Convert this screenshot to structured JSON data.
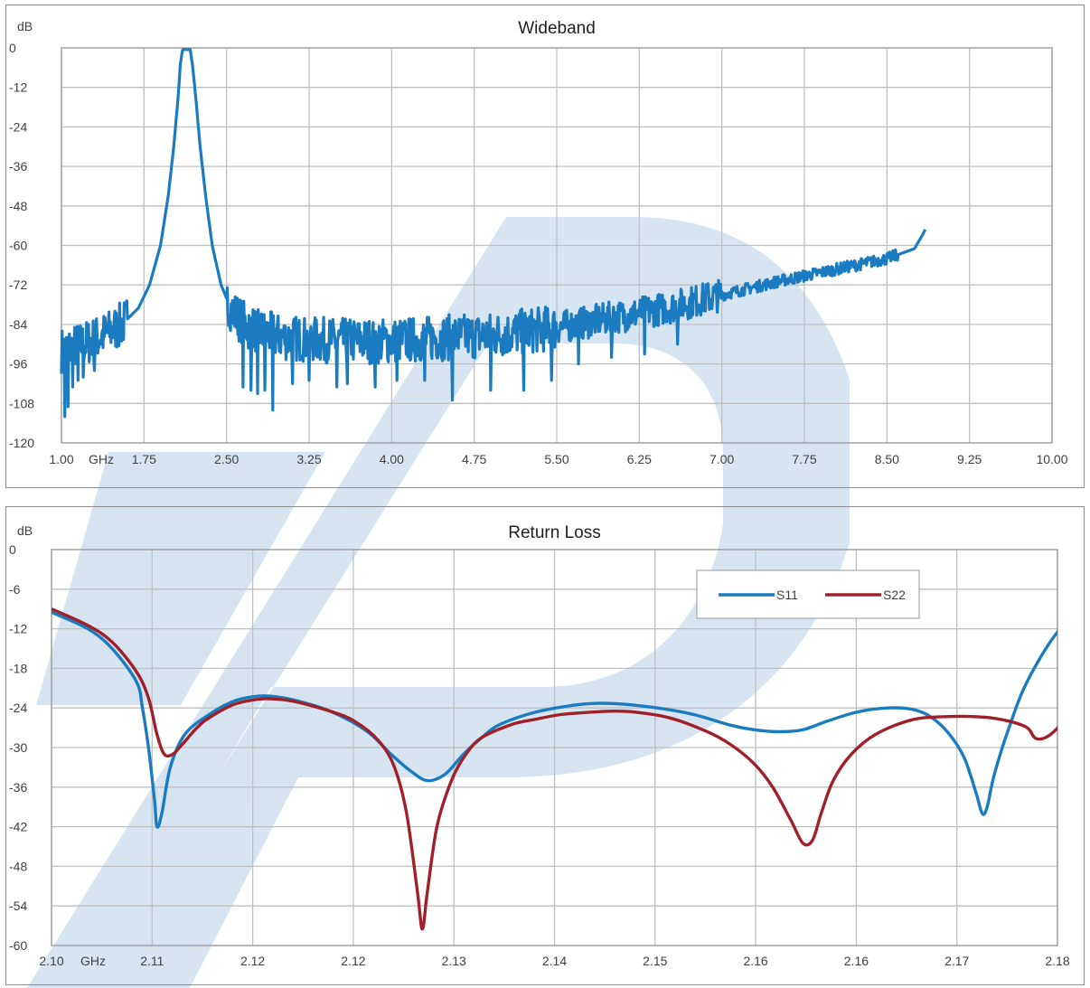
{
  "watermark": {
    "color": "#cfe0ef",
    "shape": "stylized-logo"
  },
  "chart_data": [
    {
      "type": "line",
      "title": "Wideband",
      "ylabel": "dB",
      "xunit": "GHz",
      "xlim": [
        1.0,
        10.0
      ],
      "ylim": [
        -120,
        0
      ],
      "grid": true,
      "x_ticks": [
        "1.00",
        "1.75",
        "2.50",
        "3.25",
        "4.00",
        "4.75",
        "5.50",
        "6.25",
        "7.00",
        "7.75",
        "8.50",
        "9.25",
        "10.00"
      ],
      "y_ticks": [
        "0",
        "-12",
        "-24",
        "-36",
        "-48",
        "-60",
        "-72",
        "-84",
        "-96",
        "-108",
        "-120"
      ],
      "series": [
        {
          "color": "#1a7bc0",
          "points": [
            [
              1.0,
              -92
            ],
            [
              1.2,
              -90
            ],
            [
              1.4,
              -87
            ],
            [
              1.55,
              -84
            ],
            [
              1.7,
              -79
            ],
            [
              1.8,
              -72
            ],
            [
              1.9,
              -60
            ],
            [
              1.97,
              -45
            ],
            [
              2.02,
              -30
            ],
            [
              2.06,
              -15
            ],
            [
              2.08,
              -5
            ],
            [
              2.1,
              -0.5
            ],
            [
              2.17,
              -0.5
            ],
            [
              2.19,
              -5
            ],
            [
              2.22,
              -15
            ],
            [
              2.26,
              -30
            ],
            [
              2.31,
              -45
            ],
            [
              2.37,
              -60
            ],
            [
              2.45,
              -72
            ],
            [
              2.55,
              -80
            ],
            [
              2.7,
              -85
            ],
            [
              3.0,
              -88
            ],
            [
              3.5,
              -89
            ],
            [
              4.0,
              -89
            ],
            [
              4.5,
              -88
            ],
            [
              5.0,
              -87
            ],
            [
              5.5,
              -85
            ],
            [
              6.0,
              -82
            ],
            [
              6.5,
              -79
            ],
            [
              7.0,
              -75
            ],
            [
              7.5,
              -71
            ],
            [
              8.0,
              -67.5
            ],
            [
              8.5,
              -64
            ],
            [
              8.75,
              -61
            ],
            [
              8.82,
              -57
            ],
            [
              8.85,
              -55
            ]
          ],
          "noise": [
            {
              "x": [
                1.0,
                1.6
              ],
              "spread": 7,
              "dips": [
                [
                  1.03,
                  -112
                ],
                [
                  1.06,
                  -109
                ],
                [
                  1.1,
                  -103
                ],
                [
                  1.15,
                  -101
                ],
                [
                  1.2,
                  -100
                ],
                [
                  1.3,
                  -98
                ]
              ]
            },
            {
              "x": [
                2.5,
                5.5
              ],
              "spread": 7,
              "dips": [
                [
                  2.65,
                  -103
                ],
                [
                  2.72,
                  -104
                ],
                [
                  2.78,
                  -105
                ],
                [
                  2.85,
                  -104
                ],
                [
                  2.92,
                  -110
                ],
                [
                  3.1,
                  -102
                ],
                [
                  3.25,
                  -101
                ],
                [
                  3.5,
                  -103
                ],
                [
                  3.6,
                  -102
                ],
                [
                  3.85,
                  -103
                ],
                [
                  4.05,
                  -101
                ],
                [
                  4.3,
                  -101
                ],
                [
                  4.55,
                  -107
                ],
                [
                  4.9,
                  -104
                ],
                [
                  5.2,
                  -104
                ],
                [
                  5.45,
                  -101
                ]
              ]
            },
            {
              "x": [
                5.5,
                7.0
              ],
              "spread": 5,
              "dips": [
                [
                  5.7,
                  -96
                ],
                [
                  6.0,
                  -94
                ],
                [
                  6.3,
                  -93
                ],
                [
                  6.6,
                  -90
                ]
              ]
            },
            {
              "x": [
                7.0,
                8.6
              ],
              "spread": 1.8,
              "dips": []
            }
          ]
        }
      ]
    },
    {
      "type": "line",
      "title": "Return Loss",
      "ylabel": "dB",
      "xunit": "GHz",
      "xlim": [
        2.095,
        2.178
      ],
      "ylim": [
        -60,
        0
      ],
      "grid": true,
      "x_tick_positions": [
        2.095,
        2.1033,
        2.1116,
        2.1199,
        2.1282,
        2.1365,
        2.1448,
        2.1531,
        2.1614,
        2.1697,
        2.178
      ],
      "x_ticks": [
        "2.10",
        "2.11",
        "2.12",
        "2.12",
        "2.13",
        "2.14",
        "2.15",
        "2.16",
        "2.16",
        "2.17",
        "2.18"
      ],
      "y_ticks": [
        "0",
        "-6",
        "-12",
        "-18",
        "-24",
        "-30",
        "-36",
        "-42",
        "-48",
        "-54",
        "-60"
      ],
      "legend": {
        "position": "top-right",
        "entries": [
          "S11",
          "S22"
        ]
      },
      "series": [
        {
          "name": "S11",
          "color": "#1a7bc0",
          "points": [
            [
              2.095,
              -9.5
            ],
            [
              2.098,
              -12
            ],
            [
              2.1,
              -15
            ],
            [
              2.102,
              -20
            ],
            [
              2.1025,
              -24
            ],
            [
              2.103,
              -30
            ],
            [
              2.1035,
              -38
            ],
            [
              2.1037,
              -42
            ],
            [
              2.1041,
              -40
            ],
            [
              2.1048,
              -33
            ],
            [
              2.106,
              -28
            ],
            [
              2.108,
              -25
            ],
            [
              2.11,
              -23
            ],
            [
              2.1116,
              -22.3
            ],
            [
              2.113,
              -22.2
            ],
            [
              2.115,
              -22.8
            ],
            [
              2.118,
              -24.5
            ],
            [
              2.121,
              -27.5
            ],
            [
              2.123,
              -31
            ],
            [
              2.1246,
              -33.5
            ],
            [
              2.126,
              -35
            ],
            [
              2.1275,
              -34
            ],
            [
              2.129,
              -31
            ],
            [
              2.1305,
              -28.5
            ],
            [
              2.132,
              -26.5
            ],
            [
              2.135,
              -24.6
            ],
            [
              2.138,
              -23.6
            ],
            [
              2.14,
              -23.3
            ],
            [
              2.142,
              -23.4
            ],
            [
              2.145,
              -24
            ],
            [
              2.148,
              -25
            ],
            [
              2.151,
              -26.6
            ],
            [
              2.153,
              -27.3
            ],
            [
              2.155,
              -27.6
            ],
            [
              2.157,
              -27.3
            ],
            [
              2.159,
              -26
            ],
            [
              2.1615,
              -24.6
            ],
            [
              2.164,
              -24
            ],
            [
              2.166,
              -24.2
            ],
            [
              2.1675,
              -25.3
            ],
            [
              2.169,
              -27.8
            ],
            [
              2.1703,
              -31.5
            ],
            [
              2.1713,
              -37
            ],
            [
              2.1718,
              -40
            ],
            [
              2.1722,
              -39
            ],
            [
              2.1728,
              -34
            ],
            [
              2.174,
              -27
            ],
            [
              2.1755,
              -20
            ],
            [
              2.178,
              -12.5
            ],
            [
              2.1805,
              -8.5
            ]
          ]
        },
        {
          "name": "S22",
          "color": "#a0202a",
          "points": [
            [
              2.095,
              -9
            ],
            [
              2.098,
              -11.5
            ],
            [
              2.1,
              -14
            ],
            [
              2.102,
              -18.5
            ],
            [
              2.103,
              -22.5
            ],
            [
              2.1037,
              -28
            ],
            [
              2.1043,
              -31
            ],
            [
              2.105,
              -31
            ],
            [
              2.1058,
              -29.5
            ],
            [
              2.107,
              -27
            ],
            [
              2.108,
              -25.5
            ],
            [
              2.11,
              -23.5
            ],
            [
              2.1116,
              -22.8
            ],
            [
              2.113,
              -22.6
            ],
            [
              2.115,
              -23
            ],
            [
              2.118,
              -24.5
            ],
            [
              2.12,
              -26
            ],
            [
              2.122,
              -29
            ],
            [
              2.1233,
              -33
            ],
            [
              2.1243,
              -40
            ],
            [
              2.1252,
              -52
            ],
            [
              2.1256,
              -57.5
            ],
            [
              2.126,
              -52
            ],
            [
              2.1268,
              -42
            ],
            [
              2.128,
              -35
            ],
            [
              2.1292,
              -31
            ],
            [
              2.1305,
              -28.5
            ],
            [
              2.133,
              -26.5
            ],
            [
              2.135,
              -25.7
            ],
            [
              2.137,
              -25
            ],
            [
              2.139,
              -24.7
            ],
            [
              2.141,
              -24.5
            ],
            [
              2.143,
              -24.6
            ],
            [
              2.146,
              -25.5
            ],
            [
              2.149,
              -27.5
            ],
            [
              2.151,
              -29.5
            ],
            [
              2.153,
              -32.5
            ],
            [
              2.1545,
              -36
            ],
            [
              2.156,
              -41
            ],
            [
              2.157,
              -44.5
            ],
            [
              2.1578,
              -44
            ],
            [
              2.1585,
              -40
            ],
            [
              2.1595,
              -35
            ],
            [
              2.161,
              -31
            ],
            [
              2.163,
              -28
            ],
            [
              2.166,
              -25.8
            ],
            [
              2.169,
              -25.3
            ],
            [
              2.172,
              -25.4
            ],
            [
              2.174,
              -26
            ],
            [
              2.1755,
              -27
            ],
            [
              2.1762,
              -28.6
            ],
            [
              2.1772,
              -28.3
            ],
            [
              2.1785,
              -26
            ],
            [
              2.18,
              -22
            ],
            [
              2.182,
              -17
            ],
            [
              2.1805,
              -8
            ]
          ]
        }
      ]
    }
  ]
}
